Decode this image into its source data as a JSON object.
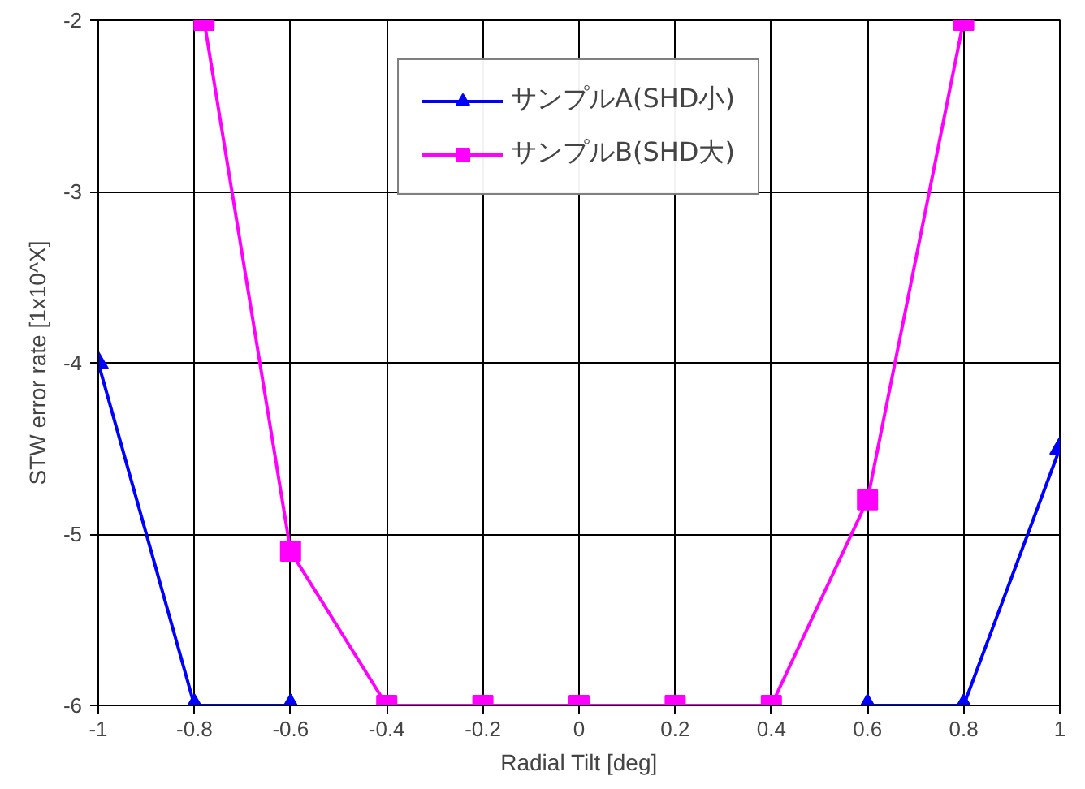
{
  "chart_data": {
    "type": "line",
    "xlabel": "Radial Tilt [deg]",
    "ylabel": "STW error rate [1x10^X]",
    "x": [
      -1,
      -0.8,
      -0.6,
      -0.4,
      -0.2,
      0,
      0.2,
      0.4,
      0.6,
      0.8,
      1
    ],
    "series": [
      {
        "name": "サンプルA(SHD小)",
        "color": "#0000ff",
        "marker": "triangle",
        "values": [
          -4,
          -6,
          -6,
          null,
          null,
          null,
          null,
          null,
          -6,
          -6,
          -4.5
        ]
      },
      {
        "name": "サンプルB(SHD大)",
        "color": "#ff00ff",
        "marker": "square",
        "x": [
          -0.78,
          -0.6,
          -0.4,
          -0.2,
          0,
          0.2,
          0.4,
          0.6,
          0.8
        ],
        "values": [
          -2,
          -5.1,
          -6,
          -6,
          -6,
          -6,
          -6,
          -4.8,
          -2
        ]
      }
    ],
    "xlim": [
      -1,
      1
    ],
    "ylim": [
      -6,
      -2
    ],
    "xticks": [
      -1,
      -0.8,
      -0.6,
      -0.4,
      -0.2,
      0,
      0.2,
      0.4,
      0.6,
      0.8,
      1
    ],
    "yticks": [
      -6,
      -5,
      -4,
      -3,
      -2
    ],
    "grid": true,
    "legend": "top",
    "line_style": "solid"
  }
}
